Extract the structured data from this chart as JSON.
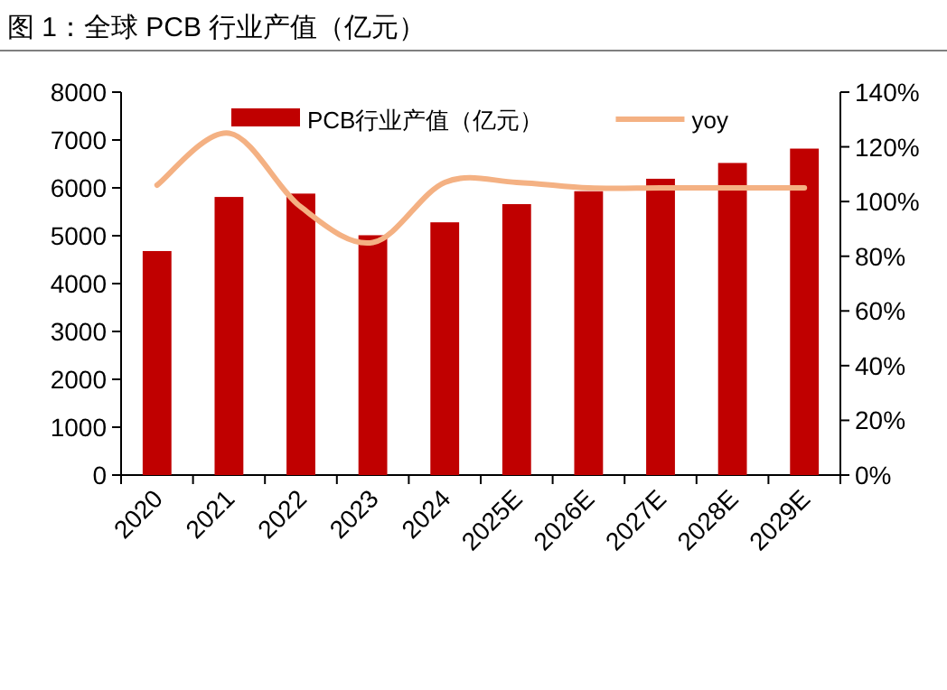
{
  "chart_data": {
    "type": "bar",
    "title": "图 1：全球 PCB 行业产值（亿元）",
    "categories": [
      "2020",
      "2021",
      "2022",
      "2023",
      "2024",
      "2025E",
      "2026E",
      "2027E",
      "2028E",
      "2029E"
    ],
    "series": [
      {
        "name": "PCB行业产值（亿元）",
        "color": "#c00000",
        "values": [
          4680,
          5810,
          5880,
          5010,
          5280,
          5660,
          5930,
          6190,
          6520,
          6820
        ]
      },
      {
        "name": "yoy",
        "type": "line",
        "axis": "y2",
        "color": "#f4b183",
        "values": [
          106,
          125,
          98,
          85,
          107,
          107,
          105,
          105,
          105,
          105
        ]
      }
    ],
    "ylim": [
      0,
      8000
    ],
    "yticks": [
      0,
      1000,
      2000,
      3000,
      4000,
      5000,
      6000,
      7000,
      8000
    ],
    "y2lim": [
      0,
      140
    ],
    "y2ticks": [
      {
        "value": 0,
        "label": "0%"
      },
      {
        "value": 20,
        "label": "20%"
      },
      {
        "value": 40,
        "label": "40%"
      },
      {
        "value": 60,
        "label": "60%"
      },
      {
        "value": 80,
        "label": "80%"
      },
      {
        "value": 100,
        "label": "100%"
      },
      {
        "value": 120,
        "label": "120%"
      },
      {
        "value": 140,
        "label": "140%"
      }
    ],
    "grid": false,
    "legend": "top"
  }
}
